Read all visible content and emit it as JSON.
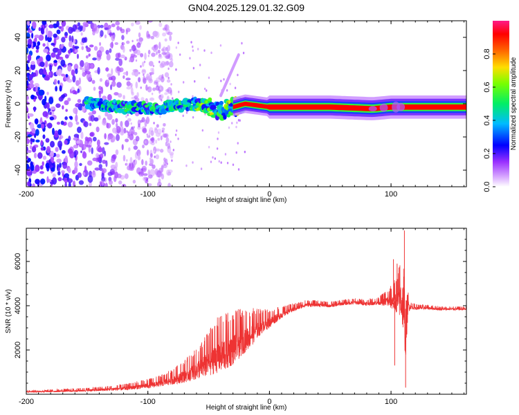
{
  "figure_title": "GN04.2025.129.01.32.G09",
  "colorbar": {
    "label": "Normalized spectral amplitude",
    "ticks": [
      "0.0",
      "0.2",
      "0.4",
      "0.6",
      "0.8"
    ],
    "range": [
      0,
      1
    ],
    "colormap": [
      "#ffffff",
      "#c070ff",
      "#6600dd",
      "#0000ff",
      "#00ccff",
      "#00ff66",
      "#ccff00",
      "#ff8800",
      "#ff0000",
      "#ff00aa"
    ]
  },
  "chart_data": [
    {
      "type": "heatmap",
      "title": "",
      "xlabel": "Height of straight line (km)",
      "ylabel": "Frequency (Hz)",
      "xlim": [
        -200,
        162
      ],
      "ylim": [
        -50,
        50
      ],
      "xticks": [
        "-200",
        "-100",
        "0",
        "100"
      ],
      "yticks": [
        "-40",
        "-20",
        "0",
        "20",
        "40"
      ],
      "grid": false,
      "description_points": {
        "noise_region_x": [
          -200,
          -110
        ],
        "transition_region_x": [
          -110,
          0
        ],
        "steady_tone_region_x": [
          0,
          162
        ],
        "tone_frequency_hz": [
          [
            -150,
            0
          ],
          [
            -100,
            -3
          ],
          [
            -60,
            0
          ],
          [
            -40,
            -4
          ],
          [
            -20,
            0
          ],
          [
            0,
            -2
          ],
          [
            50,
            -2
          ],
          [
            85,
            -3
          ],
          [
            100,
            -2
          ],
          [
            162,
            -2
          ]
        ]
      }
    },
    {
      "type": "line",
      "title": "",
      "xlabel": "Height of straight line (km)",
      "ylabel": "SNR (10 * v/v)",
      "xlim": [
        -200,
        162
      ],
      "ylim": [
        0,
        7500
      ],
      "xticks": [
        "-200",
        "-100",
        "0",
        "100"
      ],
      "yticks": [
        "2000",
        "4000",
        "6000"
      ],
      "color": "#ee3333",
      "series": [
        {
          "x": [
            -200,
            -180,
            -160,
            -140,
            -120,
            -100,
            -90,
            -80,
            -70,
            -60,
            -50,
            -45,
            -40,
            -35,
            -30,
            -25,
            -20,
            -15,
            -10,
            -5,
            0,
            5,
            10,
            15,
            20,
            25,
            30,
            40,
            50,
            60,
            70,
            80,
            90,
            95,
            100,
            105,
            108,
            110,
            112,
            114,
            116,
            120,
            130,
            140,
            150,
            162
          ],
          "values": [
            120,
            130,
            160,
            200,
            260,
            400,
            500,
            650,
            850,
            1100,
            1450,
            1700,
            1800,
            1900,
            2100,
            2300,
            2500,
            2700,
            2950,
            3150,
            3250,
            3450,
            3600,
            3750,
            3850,
            3950,
            4050,
            4050,
            4000,
            4100,
            4150,
            4100,
            4150,
            4200,
            4200,
            4200,
            4300,
            4000,
            2400,
            4000,
            3950,
            3900,
            3900,
            3850,
            3850,
            3850
          ],
          "noise_amplitude": [
            60,
            70,
            90,
            120,
            160,
            250,
            300,
            400,
            600,
            800,
            1200,
            1400,
            1500,
            1500,
            1400,
            1300,
            1100,
            1000,
            800,
            600,
            500,
            400,
            300,
            250,
            220,
            200,
            180,
            160,
            150,
            150,
            160,
            170,
            200,
            400,
            600,
            1000,
            1700,
            2200,
            1500,
            600,
            200,
            150,
            120,
            110,
            100,
            100
          ]
        }
      ],
      "spikes": [
        {
          "x": 102,
          "y": 6100
        },
        {
          "x": 103,
          "y": 1300
        },
        {
          "x": 105,
          "y": 5900
        },
        {
          "x": 111,
          "y": 7400
        },
        {
          "x": 112,
          "y": 300
        }
      ]
    }
  ]
}
